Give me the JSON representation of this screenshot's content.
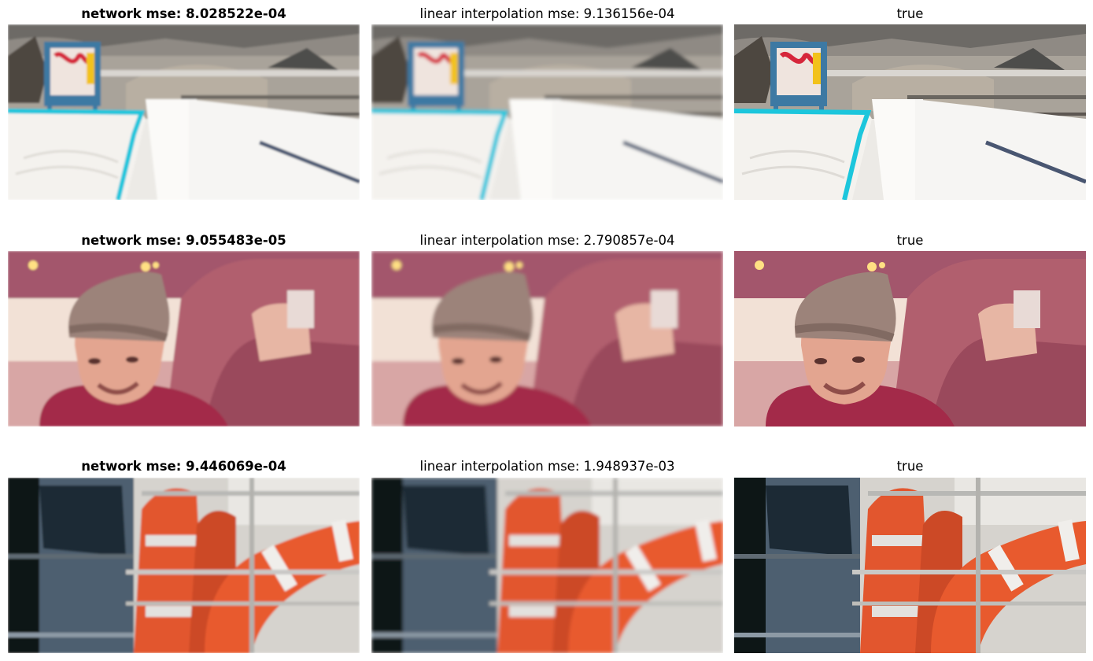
{
  "rows": [
    {
      "network_title": "network mse: 8.028522e-04",
      "linear_title": "linear interpolation mse: 9.136156e-04",
      "true_title": "true",
      "scene": "snow slope with a Red Bull sign and blue edge markings"
    },
    {
      "network_title": "network mse: 9.055483e-05",
      "linear_title": "linear interpolation mse: 2.790857e-04",
      "true_title": "true",
      "scene": "man in a knit beanie beside a person holding a can"
    },
    {
      "network_title": "network mse: 9.446069e-04",
      "linear_title": "linear interpolation mse: 1.948937e-03",
      "true_title": "true",
      "scene": "orange and white life rings on a boat railing"
    }
  ]
}
